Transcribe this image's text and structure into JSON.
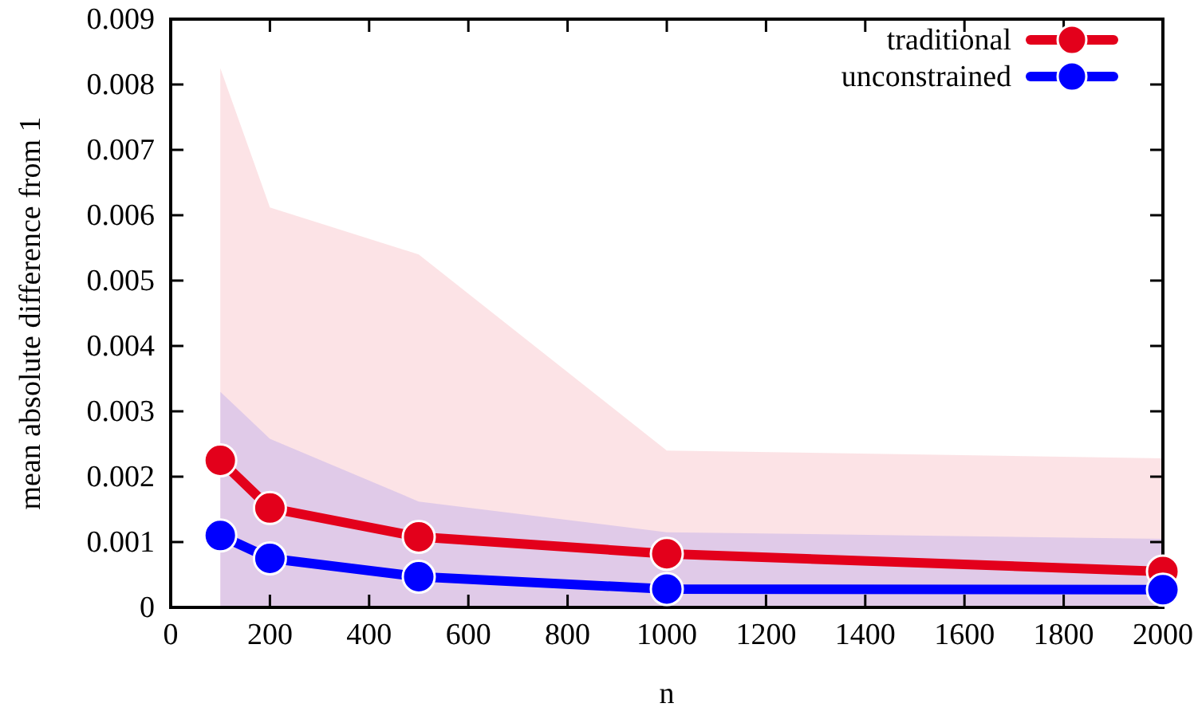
{
  "chart_data": {
    "type": "line",
    "xlabel": "n",
    "ylabel": "mean absolute difference from 1",
    "x": [
      100,
      200,
      500,
      1000,
      2000
    ],
    "series": [
      {
        "name": "traditional",
        "color": "#e3001b",
        "values": [
          0.00225,
          0.00152,
          0.00108,
          0.00082,
          0.00055
        ],
        "lower": [
          0,
          0,
          0,
          0,
          0
        ],
        "upper": [
          0.00825,
          0.00612,
          0.0054,
          0.0024,
          0.00228
        ]
      },
      {
        "name": "unconstrained",
        "color": "#0000ff",
        "values": [
          0.0011,
          0.00075,
          0.00047,
          0.00028,
          0.00027
        ],
        "lower": [
          0,
          0,
          0,
          0,
          0
        ],
        "upper": [
          0.0033,
          0.00258,
          0.00162,
          0.00115,
          0.00105
        ]
      }
    ],
    "xlim": [
      0,
      2000
    ],
    "xticks": [
      0,
      200,
      400,
      600,
      800,
      1000,
      1200,
      1400,
      1600,
      1800,
      2000
    ],
    "ylim": [
      0,
      0.009
    ],
    "yticks": [
      0,
      0.001,
      0.002,
      0.003,
      0.004,
      0.005,
      0.006,
      0.007,
      0.008,
      0.009
    ],
    "grid": false,
    "legend": "top right",
    "marker": "circle",
    "line_style": "solid"
  }
}
